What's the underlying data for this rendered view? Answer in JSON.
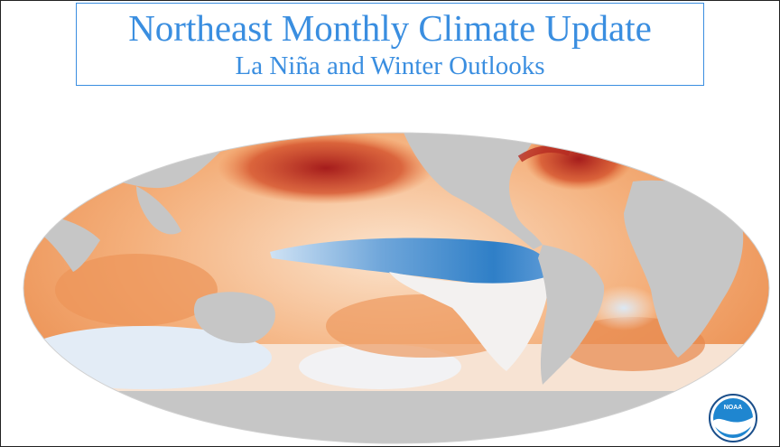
{
  "header": {
    "title": "Northeast Monthly Climate Update",
    "subtitle": "La Niña and Winter Outlooks"
  },
  "map": {
    "type": "sea-surface-temperature-anomaly",
    "projection": "Mollweide",
    "colors": {
      "land": "#c6c6c6",
      "warm_strong": "#a51c1c",
      "warm": "#e8773a",
      "warm_light": "#f6c08f",
      "neutral": "#fbefe3",
      "cool": "#6fa6da",
      "cool_strong": "#2f7fc7"
    }
  },
  "logo": {
    "icon": "noaa-logo-icon",
    "text": "NOAA",
    "colors": {
      "ring": "#1a4e8a",
      "field": "#1f86d0",
      "wave": "#ffffff"
    }
  }
}
